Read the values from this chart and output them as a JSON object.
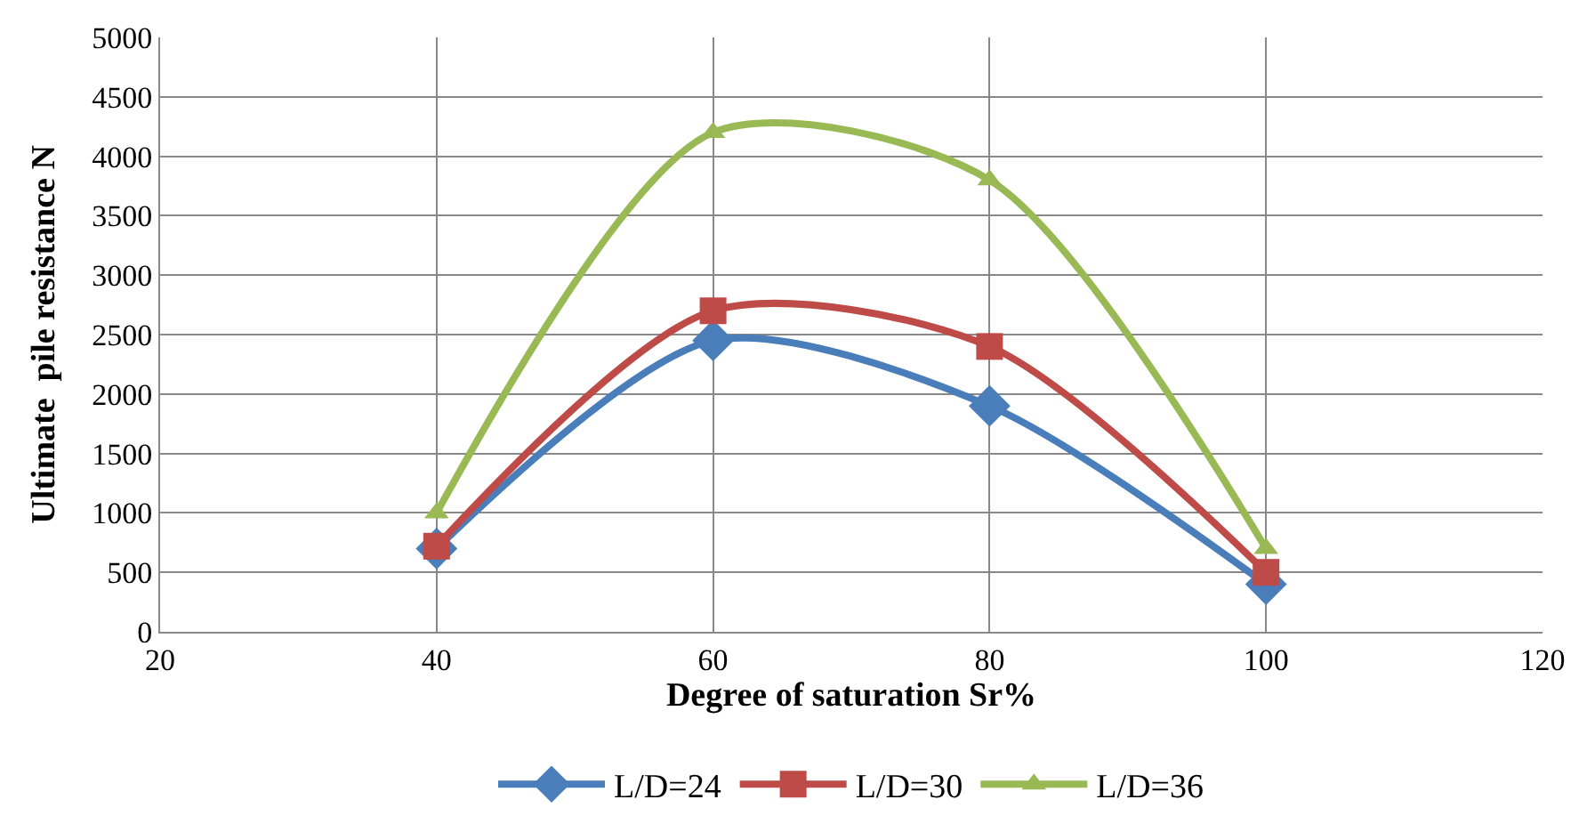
{
  "chart_data": {
    "type": "line",
    "xlabel": "Degree of saturation Sr%",
    "ylabel": "Ultimate  pile resistance N",
    "x": [
      40,
      60,
      80,
      100
    ],
    "series": [
      {
        "name": "L/D=24",
        "color": "#4a7ebb",
        "values": [
          700,
          2450,
          1900,
          400
        ],
        "marker": "diamond"
      },
      {
        "name": "L/D=30",
        "color": "#be4b48",
        "values": [
          720,
          2700,
          2400,
          500
        ],
        "marker": "square"
      },
      {
        "name": "L/D=36",
        "color": "#98b954",
        "values": [
          1000,
          4200,
          3800,
          700
        ],
        "marker": "triangle"
      }
    ],
    "xlim": [
      20,
      120
    ],
    "xticks": [
      20,
      40,
      60,
      80,
      100,
      120
    ],
    "ylim": [
      0,
      5000
    ],
    "yticks": [
      0,
      500,
      1000,
      1500,
      2000,
      2500,
      3000,
      3500,
      4000,
      4500,
      5000
    ],
    "grid": true,
    "legend": "bottom",
    "line_style": "solid"
  }
}
